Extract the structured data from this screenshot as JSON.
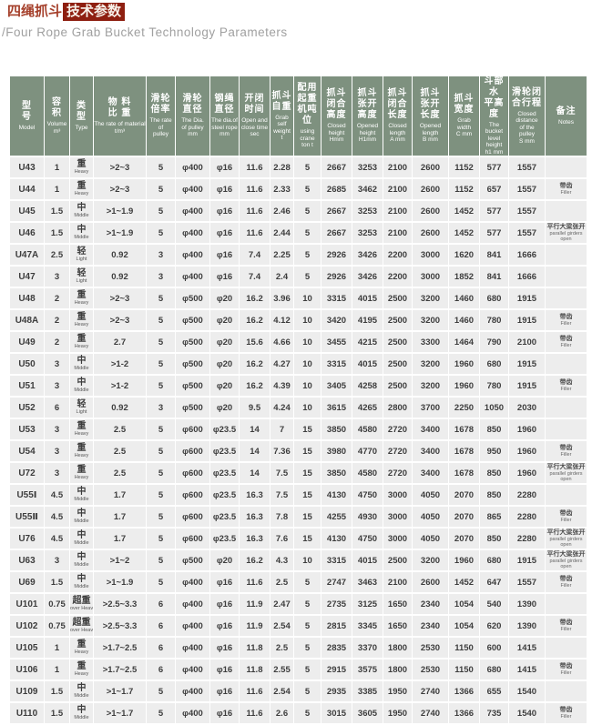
{
  "page": {
    "title_zh_plain": "四绳抓斗",
    "title_zh_highlight": "技术参数",
    "subtitle": "/Four Rope Grab Bucket Technology Parameters"
  },
  "colors": {
    "header_bg": "#7e917f",
    "header_text": "#ffffff",
    "cell_bg": "#ededed",
    "data_text": "#3d3d3d",
    "title_text": "#a5402b",
    "title_highlight_bg": "#8e1f10",
    "subtitle_text": "#a0a0a0"
  },
  "table": {
    "headers": [
      {
        "zh": "型\n号",
        "en": "Model"
      },
      {
        "zh": "容\n积",
        "en": "Volume\nm³"
      },
      {
        "zh": "类\n型",
        "en": "Type"
      },
      {
        "zh": "物 料\n比 重",
        "en": "The rate of material\nt/m³"
      },
      {
        "zh": "滑轮\n倍率",
        "en": "The rate\nof\npulley"
      },
      {
        "zh": "滑轮\n直径",
        "en": "The Dia.\nof pulley\nmm"
      },
      {
        "zh": "钢绳\n直径",
        "en": "The dia.of\nsteel rope\nmm"
      },
      {
        "zh": "开闭\n时间",
        "en": "Open and\nclose time\nsec"
      },
      {
        "zh": "抓斗\n自重",
        "en": "Grab self\nweight\nt"
      },
      {
        "zh": "配用\n起重\n机吨\n位",
        "en": "using crane\nton t"
      },
      {
        "zh": "抓斗\n闭合\n高度",
        "en": "Closed\nheight\nHmm"
      },
      {
        "zh": "抓斗\n张开\n高度",
        "en": "Opened\nheight\nH1mm"
      },
      {
        "zh": "抓斗\n闭合\n长度",
        "en": "Closed\nlength\nA mm"
      },
      {
        "zh": "抓斗\n张开\n长度",
        "en": "Opened\nlength\nB mm"
      },
      {
        "zh": "抓斗\n宽度",
        "en": "Grab\nwidth\nC mm"
      },
      {
        "zh": "斗部水\n平高度",
        "en": "The\nbucket\nlevel\nheight\nh1 mm"
      },
      {
        "zh": "滑轮闭\n合行程",
        "en": "Closed\ndistance\nof the\npulley\nS mm"
      },
      {
        "zh": "备注",
        "en": "Notes"
      }
    ],
    "row_fields": [
      "model",
      "volume",
      "type_zh",
      "type_en",
      "material_rate",
      "pulley_rate",
      "pulley_dia",
      "rope_dia",
      "open_close_time",
      "self_weight",
      "crane_ton",
      "closed_height",
      "opened_height",
      "closed_length",
      "opened_length",
      "grab_width",
      "bucket_level_height",
      "pulley_stroke",
      "note_zh",
      "note_en"
    ],
    "rows": [
      [
        "U43",
        "1",
        "重",
        "Heavy",
        ">2~3",
        "5",
        "φ400",
        "φ16",
        "11.6",
        "2.28",
        "5",
        "2667",
        "3253",
        "2100",
        "2600",
        "1152",
        "577",
        "1557",
        "",
        ""
      ],
      [
        "U44",
        "1",
        "重",
        "Heavy",
        ">2~3",
        "5",
        "φ400",
        "φ16",
        "11.6",
        "2.33",
        "5",
        "2685",
        "3462",
        "2100",
        "2600",
        "1152",
        "657",
        "1557",
        "带齿",
        "Filler"
      ],
      [
        "U45",
        "1.5",
        "中",
        "Middle",
        ">1~1.9",
        "5",
        "φ400",
        "φ16",
        "11.6",
        "2.46",
        "5",
        "2667",
        "3253",
        "2100",
        "2600",
        "1452",
        "577",
        "1557",
        "",
        ""
      ],
      [
        "U46",
        "1.5",
        "中",
        "Middle",
        ">1~1.9",
        "5",
        "φ400",
        "φ16",
        "11.6",
        "2.44",
        "5",
        "2667",
        "3253",
        "2100",
        "2600",
        "1452",
        "577",
        "1557",
        "平行大梁张开",
        "parallel girders open"
      ],
      [
        "U47A",
        "2.5",
        "轻",
        "Light",
        "0.92",
        "3",
        "φ400",
        "φ16",
        "7.4",
        "2.25",
        "5",
        "2926",
        "3426",
        "2200",
        "3000",
        "1620",
        "841",
        "1666",
        "",
        ""
      ],
      [
        "U47",
        "3",
        "轻",
        "Light",
        "0.92",
        "3",
        "φ400",
        "φ16",
        "7.4",
        "2.4",
        "5",
        "2926",
        "3426",
        "2200",
        "3000",
        "1852",
        "841",
        "1666",
        "",
        ""
      ],
      [
        "U48",
        "2",
        "重",
        "Heavy",
        ">2~3",
        "5",
        "φ500",
        "φ20",
        "16.2",
        "3.96",
        "10",
        "3315",
        "4015",
        "2500",
        "3200",
        "1460",
        "680",
        "1915",
        "",
        ""
      ],
      [
        "U48A",
        "2",
        "重",
        "Heavy",
        ">2~3",
        "5",
        "φ500",
        "φ20",
        "16.2",
        "4.12",
        "10",
        "3420",
        "4195",
        "2500",
        "3200",
        "1460",
        "780",
        "1915",
        "带齿",
        "Filler"
      ],
      [
        "U49",
        "2",
        "重",
        "Heavy",
        "2.7",
        "5",
        "φ500",
        "φ20",
        "15.6",
        "4.66",
        "10",
        "3455",
        "4215",
        "2500",
        "3300",
        "1464",
        "790",
        "2100",
        "带齿",
        "Filler"
      ],
      [
        "U50",
        "3",
        "中",
        "Middle",
        ">1-2",
        "5",
        "φ500",
        "φ20",
        "16.2",
        "4.27",
        "10",
        "3315",
        "4015",
        "2500",
        "3200",
        "1960",
        "680",
        "1915",
        "",
        ""
      ],
      [
        "U51",
        "3",
        "中",
        "Middle",
        ">1-2",
        "5",
        "φ500",
        "φ20",
        "16.2",
        "4.39",
        "10",
        "3405",
        "4258",
        "2500",
        "3200",
        "1960",
        "780",
        "1915",
        "带齿",
        "Filler"
      ],
      [
        "U52",
        "6",
        "轻",
        "Light",
        "0.92",
        "3",
        "φ500",
        "φ20",
        "9.5",
        "4.24",
        "10",
        "3615",
        "4265",
        "2800",
        "3700",
        "2250",
        "1050",
        "2030",
        "",
        ""
      ],
      [
        "U53",
        "3",
        "重",
        "Heavy",
        "2.5",
        "5",
        "φ600",
        "φ23.5",
        "14",
        "7",
        "15",
        "3850",
        "4580",
        "2720",
        "3400",
        "1678",
        "850",
        "1960",
        "",
        ""
      ],
      [
        "U54",
        "3",
        "重",
        "Heavy",
        "2.5",
        "5",
        "φ600",
        "φ23.5",
        "14",
        "7.36",
        "15",
        "3980",
        "4770",
        "2720",
        "3400",
        "1678",
        "950",
        "1960",
        "带齿",
        "Filler"
      ],
      [
        "U72",
        "3",
        "重",
        "Heavy",
        "2.5",
        "5",
        "φ600",
        "φ23.5",
        "14",
        "7.5",
        "15",
        "3850",
        "4580",
        "2720",
        "3400",
        "1678",
        "850",
        "1960",
        "平行大梁张开",
        "parallel girders open"
      ],
      [
        "U55Ⅰ",
        "4.5",
        "中",
        "Middle",
        "1.7",
        "5",
        "φ600",
        "φ23.5",
        "16.3",
        "7.5",
        "15",
        "4130",
        "4750",
        "3000",
        "4050",
        "2070",
        "850",
        "2280",
        "",
        ""
      ],
      [
        "U55Ⅱ",
        "4.5",
        "中",
        "Middle",
        "1.7",
        "5",
        "φ600",
        "φ23.5",
        "16.3",
        "7.8",
        "15",
        "4255",
        "4930",
        "3000",
        "4050",
        "2070",
        "865",
        "2280",
        "带齿",
        "Filler"
      ],
      [
        "U76",
        "4.5",
        "中",
        "Middle",
        "1.7",
        "5",
        "φ600",
        "φ23.5",
        "16.3",
        "7.6",
        "15",
        "4130",
        "4750",
        "3000",
        "4050",
        "2070",
        "850",
        "2280",
        "平行大梁张开",
        "parallel girders open"
      ],
      [
        "U63",
        "3",
        "中",
        "Middle",
        ">1~2",
        "5",
        "φ500",
        "φ20",
        "16.2",
        "4.3",
        "10",
        "3315",
        "4015",
        "2500",
        "3200",
        "1960",
        "680",
        "1915",
        "平行大梁张开",
        "parallel girders open"
      ],
      [
        "U69",
        "1.5",
        "中",
        "Middle",
        ">1~1.9",
        "5",
        "φ400",
        "φ16",
        "11.6",
        "2.5",
        "5",
        "2747",
        "3463",
        "2100",
        "2600",
        "1452",
        "647",
        "1557",
        "带齿",
        "Filler"
      ],
      [
        "U101",
        "0.75",
        "超重",
        "over Heavy",
        ">2.5~3.3",
        "6",
        "φ400",
        "φ16",
        "11.9",
        "2.47",
        "5",
        "2735",
        "3125",
        "1650",
        "2340",
        "1054",
        "540",
        "1390",
        "",
        ""
      ],
      [
        "U102",
        "0.75",
        "超重",
        "over Heavy",
        ">2.5~3.3",
        "6",
        "φ400",
        "φ16",
        "11.9",
        "2.54",
        "5",
        "2815",
        "3345",
        "1650",
        "2340",
        "1054",
        "620",
        "1390",
        "带齿",
        "Filler"
      ],
      [
        "U105",
        "1",
        "重",
        "Heavy",
        ">1.7~2.5",
        "6",
        "φ400",
        "φ16",
        "11.8",
        "2.5",
        "5",
        "2835",
        "3370",
        "1800",
        "2530",
        "1150",
        "600",
        "1415",
        "",
        ""
      ],
      [
        "U106",
        "1",
        "重",
        "Heavy",
        ">1.7~2.5",
        "6",
        "φ400",
        "φ16",
        "11.8",
        "2.55",
        "5",
        "2915",
        "3575",
        "1800",
        "2530",
        "1150",
        "680",
        "1415",
        "带齿",
        "Filler"
      ],
      [
        "U109",
        "1.5",
        "中",
        "Middle",
        ">1~1.7",
        "5",
        "φ400",
        "φ16",
        "11.6",
        "2.54",
        "5",
        "2935",
        "3385",
        "1950",
        "2740",
        "1366",
        "655",
        "1540",
        "",
        ""
      ],
      [
        "U110",
        "1.5",
        "中",
        "Middle",
        ">1~1.7",
        "5",
        "φ400",
        "φ16",
        "11.6",
        "2.6",
        "5",
        "3015",
        "3605",
        "1950",
        "2740",
        "1366",
        "735",
        "1540",
        "带齿",
        "Filler"
      ]
    ]
  }
}
